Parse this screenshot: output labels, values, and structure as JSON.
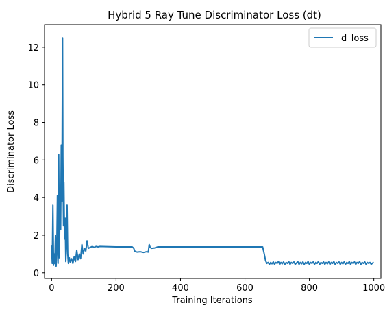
{
  "chart_data": {
    "type": "line",
    "title": "Hybrid 5 Ray Tune Discriminator Loss (dt)",
    "xlabel": "Training Iterations",
    "ylabel": "Discriminator Loss",
    "xlim": [
      -22,
      1022
    ],
    "ylim": [
      -0.3,
      13.2
    ],
    "xticks": [
      0,
      200,
      400,
      600,
      800,
      1000
    ],
    "yticks": [
      0,
      2,
      4,
      6,
      8,
      10,
      12
    ],
    "grid": false,
    "legend_position": "top-right",
    "series": [
      {
        "name": "d_loss",
        "color": "#1f77b4",
        "points": [
          [
            0,
            1.45
          ],
          [
            2,
            0.5
          ],
          [
            4,
            3.6
          ],
          [
            6,
            0.4
          ],
          [
            8,
            1.0
          ],
          [
            10,
            0.5
          ],
          [
            12,
            2.0
          ],
          [
            14,
            0.35
          ],
          [
            16,
            1.2
          ],
          [
            18,
            4.1
          ],
          [
            20,
            0.5
          ],
          [
            22,
            6.3
          ],
          [
            24,
            0.8
          ],
          [
            26,
            3.8
          ],
          [
            28,
            2.3
          ],
          [
            30,
            6.8
          ],
          [
            32,
            3.8
          ],
          [
            34,
            12.5
          ],
          [
            35,
            6.2
          ],
          [
            37,
            2.5
          ],
          [
            38,
            4.8
          ],
          [
            40,
            1.8
          ],
          [
            42,
            2.9
          ],
          [
            44,
            0.6
          ],
          [
            46,
            1.5
          ],
          [
            48,
            3.6
          ],
          [
            50,
            1.0
          ],
          [
            52,
            0.5
          ],
          [
            55,
            0.8
          ],
          [
            58,
            0.55
          ],
          [
            62,
            0.75
          ],
          [
            66,
            0.5
          ],
          [
            70,
            0.85
          ],
          [
            74,
            0.6
          ],
          [
            78,
            1.2
          ],
          [
            82,
            0.7
          ],
          [
            86,
            1.0
          ],
          [
            90,
            0.75
          ],
          [
            94,
            1.5
          ],
          [
            98,
            1.0
          ],
          [
            102,
            1.3
          ],
          [
            106,
            1.15
          ],
          [
            110,
            1.7
          ],
          [
            114,
            1.3
          ],
          [
            120,
            1.35
          ],
          [
            126,
            1.4
          ],
          [
            132,
            1.35
          ],
          [
            138,
            1.4
          ],
          [
            144,
            1.38
          ],
          [
            150,
            1.4
          ],
          [
            200,
            1.38
          ],
          [
            250,
            1.38
          ],
          [
            255,
            1.3
          ],
          [
            258,
            1.15
          ],
          [
            265,
            1.1
          ],
          [
            275,
            1.12
          ],
          [
            285,
            1.08
          ],
          [
            295,
            1.12
          ],
          [
            300,
            1.1
          ],
          [
            303,
            1.5
          ],
          [
            306,
            1.35
          ],
          [
            310,
            1.3
          ],
          [
            320,
            1.32
          ],
          [
            330,
            1.38
          ],
          [
            400,
            1.38
          ],
          [
            500,
            1.38
          ],
          [
            600,
            1.38
          ],
          [
            655,
            1.38
          ],
          [
            660,
            1.0
          ],
          [
            664,
            0.65
          ],
          [
            668,
            0.5
          ],
          [
            672,
            0.55
          ],
          [
            676,
            0.45
          ],
          [
            680,
            0.55
          ],
          [
            684,
            0.48
          ],
          [
            688,
            0.58
          ],
          [
            692,
            0.45
          ],
          [
            696,
            0.55
          ],
          [
            700,
            0.5
          ],
          [
            704,
            0.6
          ],
          [
            708,
            0.45
          ],
          [
            712,
            0.55
          ],
          [
            716,
            0.48
          ],
          [
            720,
            0.58
          ],
          [
            724,
            0.45
          ],
          [
            728,
            0.55
          ],
          [
            732,
            0.5
          ],
          [
            736,
            0.6
          ],
          [
            740,
            0.45
          ],
          [
            744,
            0.55
          ],
          [
            748,
            0.5
          ],
          [
            752,
            0.58
          ],
          [
            756,
            0.45
          ],
          [
            760,
            0.52
          ],
          [
            764,
            0.6
          ],
          [
            768,
            0.45
          ],
          [
            772,
            0.55
          ],
          [
            776,
            0.48
          ],
          [
            780,
            0.58
          ],
          [
            784,
            0.45
          ],
          [
            788,
            0.55
          ],
          [
            792,
            0.5
          ],
          [
            796,
            0.6
          ],
          [
            800,
            0.45
          ],
          [
            804,
            0.55
          ],
          [
            808,
            0.5
          ],
          [
            812,
            0.58
          ],
          [
            816,
            0.45
          ],
          [
            820,
            0.55
          ],
          [
            824,
            0.5
          ],
          [
            828,
            0.6
          ],
          [
            832,
            0.45
          ],
          [
            836,
            0.55
          ],
          [
            840,
            0.5
          ],
          [
            844,
            0.58
          ],
          [
            848,
            0.45
          ],
          [
            852,
            0.55
          ],
          [
            856,
            0.48
          ],
          [
            860,
            0.58
          ],
          [
            864,
            0.45
          ],
          [
            868,
            0.55
          ],
          [
            872,
            0.5
          ],
          [
            876,
            0.6
          ],
          [
            880,
            0.45
          ],
          [
            884,
            0.55
          ],
          [
            888,
            0.5
          ],
          [
            892,
            0.58
          ],
          [
            896,
            0.45
          ],
          [
            900,
            0.55
          ],
          [
            904,
            0.48
          ],
          [
            908,
            0.58
          ],
          [
            912,
            0.45
          ],
          [
            916,
            0.55
          ],
          [
            920,
            0.5
          ],
          [
            924,
            0.6
          ],
          [
            928,
            0.45
          ],
          [
            932,
            0.55
          ],
          [
            936,
            0.5
          ],
          [
            940,
            0.58
          ],
          [
            944,
            0.45
          ],
          [
            948,
            0.55
          ],
          [
            952,
            0.5
          ],
          [
            956,
            0.6
          ],
          [
            960,
            0.45
          ],
          [
            964,
            0.55
          ],
          [
            968,
            0.5
          ],
          [
            972,
            0.58
          ],
          [
            976,
            0.45
          ],
          [
            980,
            0.55
          ],
          [
            984,
            0.5
          ],
          [
            988,
            0.55
          ],
          [
            992,
            0.45
          ],
          [
            996,
            0.52
          ],
          [
            1000,
            0.55
          ]
        ]
      }
    ]
  }
}
